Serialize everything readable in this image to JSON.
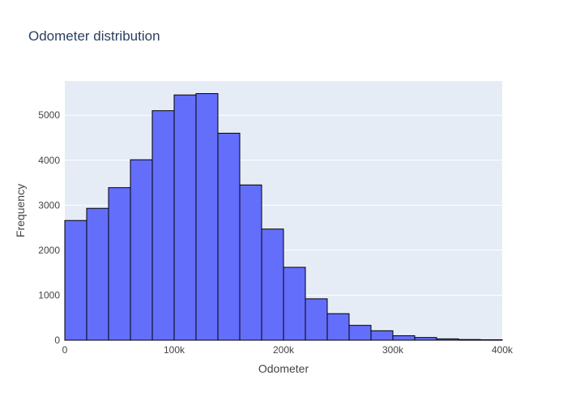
{
  "chart_data": {
    "type": "bar",
    "title": "Odometer distribution",
    "xlabel": "Odometer",
    "ylabel": "Frequency",
    "bin_width": 20000,
    "x": [
      0,
      20000,
      40000,
      60000,
      80000,
      100000,
      120000,
      140000,
      160000,
      180000,
      200000,
      220000,
      240000,
      260000,
      280000,
      300000,
      320000,
      340000,
      360000,
      380000
    ],
    "values": [
      2660,
      2930,
      3390,
      4010,
      5100,
      5450,
      5480,
      4600,
      3450,
      2470,
      1620,
      920,
      590,
      330,
      210,
      100,
      60,
      30,
      15,
      10
    ],
    "xlim": [
      0,
      400000
    ],
    "ylim": [
      0,
      5760
    ],
    "x_ticks": [
      0,
      100000,
      200000,
      300000,
      400000
    ],
    "x_tick_labels": [
      "0",
      "100k",
      "200k",
      "300k",
      "400k"
    ],
    "y_ticks": [
      0,
      1000,
      2000,
      3000,
      4000,
      5000
    ],
    "y_tick_labels": [
      "0",
      "1000",
      "2000",
      "3000",
      "4000",
      "5000"
    ],
    "grid": true,
    "colors": {
      "bar_fill": "#636efa",
      "bar_stroke": "#000000",
      "plot_bg": "#e5ecf6",
      "grid": "#ffffff"
    }
  }
}
